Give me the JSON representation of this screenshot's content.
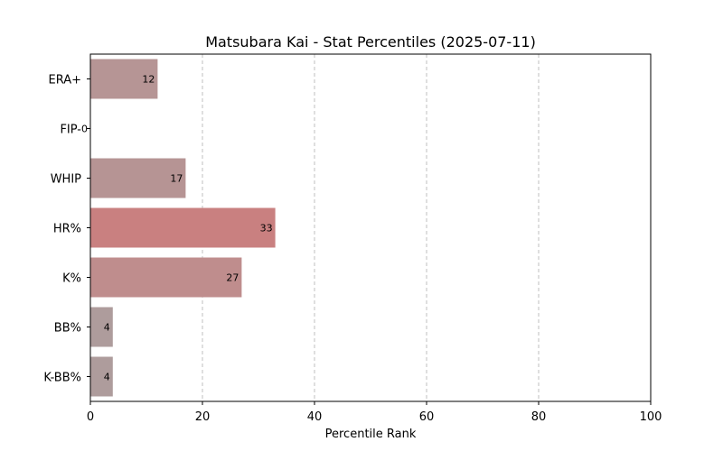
{
  "chart_data": {
    "type": "bar",
    "orientation": "horizontal",
    "title": "Matsubara Kai - Stat Percentiles (2025-07-11)",
    "xlabel": "Percentile Rank",
    "ylabel": "",
    "xlim": [
      0,
      100
    ],
    "xticks": [
      0,
      20,
      40,
      60,
      80,
      100
    ],
    "grid": "x-dashed",
    "categories": [
      "ERA+",
      "FIP-",
      "WHIP",
      "HR%",
      "K%",
      "BB%",
      "K-BB%"
    ],
    "values": [
      12,
      0,
      17,
      33,
      27,
      4,
      4
    ],
    "bar_colors": [
      "#b69595",
      "#a9a9a9",
      "#b69494",
      "#c98080",
      "#bf8d8d",
      "#ae9c9c",
      "#ae9c9c"
    ]
  }
}
